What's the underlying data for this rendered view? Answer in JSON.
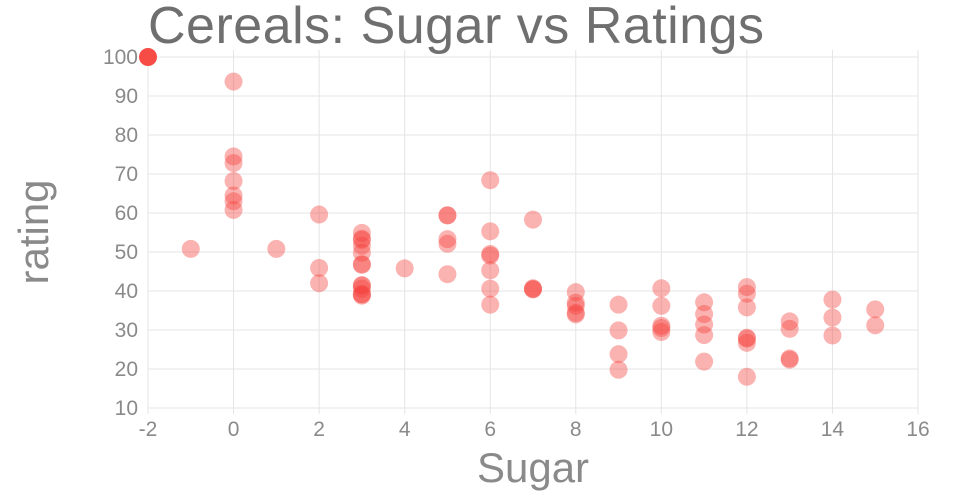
{
  "chart_data": {
    "type": "scatter",
    "title": "Cereals: Sugar vs Ratings",
    "xlabel": "Sugar",
    "ylabel": "rating",
    "xlim": [
      -2,
      16
    ],
    "ylim": [
      10,
      100
    ],
    "xticks": [
      -2,
      0,
      2,
      4,
      6,
      8,
      10,
      12,
      14,
      16
    ],
    "yticks": [
      10,
      20,
      30,
      40,
      50,
      60,
      70,
      80,
      90,
      100
    ],
    "grid": true,
    "legend": false,
    "marker_color": "#f5423b",
    "marker_opacity": 0.4,
    "x": [
      6,
      8,
      5,
      0,
      8,
      10,
      14,
      8,
      6,
      5,
      12,
      1,
      9,
      7,
      13,
      3,
      2,
      12,
      13,
      7,
      0,
      3,
      10,
      5,
      13,
      11,
      7,
      10,
      12,
      12,
      15,
      9,
      5,
      3,
      4,
      11,
      10,
      11,
      6,
      9,
      3,
      6,
      12,
      3,
      11,
      11,
      13,
      6,
      9,
      7,
      2,
      10,
      14,
      3,
      0,
      0,
      6,
      -1,
      12,
      8,
      6,
      2,
      3,
      0,
      0,
      0,
      15,
      3,
      5,
      3,
      14,
      3,
      3,
      12,
      3,
      3,
      8
    ],
    "y": [
      68.4,
      34.0,
      59.4,
      93.7,
      34.4,
      29.5,
      33.2,
      37.0,
      49.1,
      53.3,
      18.0,
      50.8,
      19.8,
      40.4,
      22.7,
      41.4,
      45.9,
      35.8,
      22.4,
      40.5,
      64.5,
      46.9,
      36.2,
      44.3,
      32.2,
      31.4,
      58.3,
      40.7,
      41.0,
      28.0,
      35.3,
      23.8,
      52.1,
      53.4,
      45.8,
      21.9,
      31.1,
      28.7,
      36.5,
      36.5,
      39.2,
      45.3,
      26.7,
      54.9,
      37.1,
      34.1,
      30.3,
      40.6,
      29.9,
      40.7,
      59.6,
      30.5,
      37.8,
      41.5,
      60.8,
      63.0,
      49.5,
      50.8,
      39.3,
      39.7,
      55.3,
      42.0,
      40.6,
      68.2,
      74.5,
      72.8,
      31.2,
      53.1,
      59.4,
      38.8,
      28.6,
      46.7,
      39.1,
      27.8,
      49.8,
      51.6,
      36.2
    ],
    "highlight_point": {
      "x": -2,
      "y": 100
    }
  }
}
